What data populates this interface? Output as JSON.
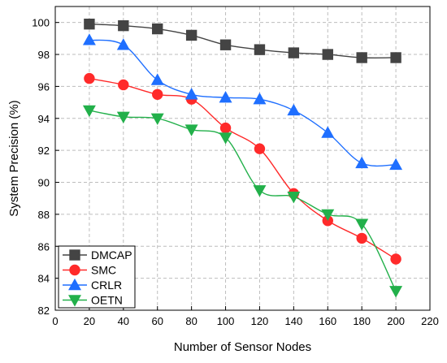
{
  "chart_data": {
    "type": "line",
    "xlabel": "Number of Sensor Nodes",
    "ylabel": "System Precision (%)",
    "xlim": [
      0,
      220
    ],
    "ylim": [
      82,
      101
    ],
    "xticks": [
      0,
      20,
      40,
      60,
      80,
      100,
      120,
      140,
      160,
      180,
      200,
      220
    ],
    "yticks": [
      82,
      84,
      86,
      88,
      90,
      92,
      94,
      96,
      98,
      100
    ],
    "grid": true,
    "legend_position": "bottom-left",
    "x": [
      20,
      40,
      60,
      80,
      100,
      120,
      140,
      160,
      180,
      200
    ],
    "series": [
      {
        "name": "DMCAP",
        "color": "#444444",
        "marker": "square",
        "values": [
          99.9,
          99.8,
          99.6,
          99.2,
          98.6,
          98.3,
          98.1,
          98.0,
          97.8,
          97.8
        ]
      },
      {
        "name": "SMC",
        "color": "#ff2a2a",
        "marker": "circle",
        "values": [
          96.5,
          96.1,
          95.5,
          95.2,
          93.4,
          92.1,
          89.3,
          87.6,
          86.5,
          85.2
        ]
      },
      {
        "name": "CRLR",
        "color": "#1f6fff",
        "marker": "triangle-up",
        "values": [
          98.9,
          98.6,
          96.4,
          95.5,
          95.3,
          95.2,
          94.5,
          93.1,
          91.2,
          91.1
        ]
      },
      {
        "name": "OETN",
        "color": "#22b04a",
        "marker": "triangle-down",
        "values": [
          94.5,
          94.1,
          94.0,
          93.3,
          92.8,
          89.5,
          89.1,
          88.0,
          87.4,
          83.2
        ]
      }
    ]
  }
}
